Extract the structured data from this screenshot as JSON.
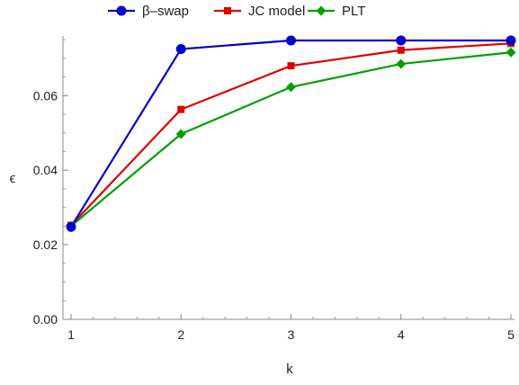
{
  "chart_data": {
    "type": "line",
    "title": "",
    "xlabel": "k",
    "ylabel": "ϵ",
    "x": [
      1,
      2,
      3,
      4,
      5
    ],
    "xlim": [
      1,
      5
    ],
    "ylim": [
      0.0,
      0.076
    ],
    "xticks": [
      "1",
      "2",
      "3",
      "4",
      "5"
    ],
    "yticks": [
      "0.00",
      "0.02",
      "0.04",
      "0.06"
    ],
    "grid": false,
    "legend_position": "top-center",
    "series": [
      {
        "name": "β–swap",
        "color": "#0000cc",
        "marker": "circle",
        "values": [
          0.0248,
          0.0725,
          0.0748,
          0.0748,
          0.0748
        ]
      },
      {
        "name": "JC model",
        "color": "#dd0000",
        "marker": "square",
        "values": [
          0.0252,
          0.0563,
          0.068,
          0.0722,
          0.074
        ]
      },
      {
        "name": "PLT",
        "color": "#00a000",
        "marker": "diamond",
        "values": [
          0.025,
          0.0497,
          0.0623,
          0.0685,
          0.0716
        ]
      }
    ]
  }
}
